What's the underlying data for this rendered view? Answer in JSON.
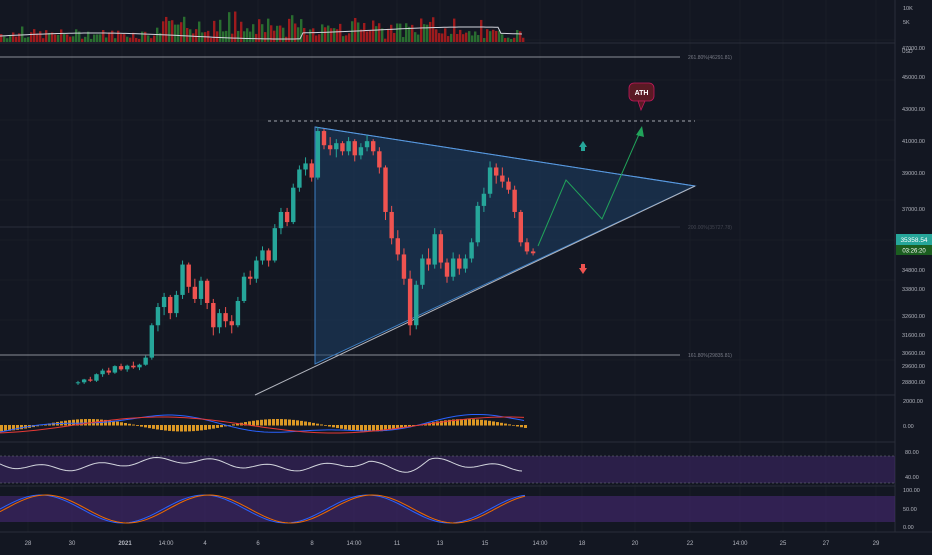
{
  "colors": {
    "background": "#131722",
    "grid": "#1e222d",
    "up": "#26a69a",
    "down": "#ef5350",
    "triangle_fill": "#1e3f66",
    "triangle_stroke": "#3d7fc4",
    "projection": "#21a35a",
    "volume_up": "#2e7d32",
    "volume_down": "#b71c1c",
    "macd_line": "#2962ff",
    "signal_line": "#e53935",
    "macd_hist": "#f2a626",
    "rsi_line": "#d1d4dc",
    "rsi_band": "#4a2a7a",
    "stoch_k": "#2962ff",
    "stoch_d": "#ef6c00",
    "price_badge": "#26a69a",
    "ath_badge": "#5a1a24"
  },
  "volume_axis": [
    "10K",
    "5K"
  ],
  "price_axis": [
    "47000.00",
    "45000.00",
    "43000.00",
    "41000.00",
    "39000.00",
    "37000.00",
    "34800.00",
    "33800.00",
    "32600.00",
    "31600.00",
    "30600.00",
    "29600.00",
    "28800.00"
  ],
  "price_axis_unit": "USD",
  "current_price": "35358.54",
  "countdown": "03:26:20",
  "fib_labels": [
    "261.80%(46291.81)",
    "161.80%(29835.81)",
    "200.00%(35727.78)"
  ],
  "ath_label": "ATH",
  "macd_axis": [
    "2000.00",
    "0.00"
  ],
  "rsi_axis": [
    "80.00",
    "40.00"
  ],
  "stoch_axis": [
    "100.00",
    "50.00",
    "0.00"
  ],
  "time_axis": [
    "28",
    "30",
    "2021",
    "14:00",
    "4",
    "6",
    "8",
    "14:00",
    "11",
    "13",
    "15",
    "14:00",
    "18",
    "20",
    "22",
    "14:00",
    "25",
    "27",
    "29"
  ],
  "chart_data": {
    "type": "candlestick",
    "ylim": [
      28000,
      48000
    ],
    "candles": [
      [
        28950,
        29050,
        28850,
        28980
      ],
      [
        28980,
        29150,
        28900,
        29120
      ],
      [
        29120,
        29250,
        29000,
        29060
      ],
      [
        29060,
        29420,
        29000,
        29380
      ],
      [
        29380,
        29650,
        29250,
        29560
      ],
      [
        29560,
        29700,
        29350,
        29460
      ],
      [
        29460,
        29820,
        29400,
        29780
      ],
      [
        29780,
        29900,
        29550,
        29620
      ],
      [
        29620,
        29850,
        29500,
        29800
      ],
      [
        29800,
        30000,
        29650,
        29720
      ],
      [
        29720,
        29900,
        29580,
        29850
      ],
      [
        29850,
        30300,
        29800,
        30200
      ],
      [
        30200,
        31900,
        30100,
        31800
      ],
      [
        31800,
        32900,
        31500,
        32700
      ],
      [
        32700,
        33400,
        32300,
        33200
      ],
      [
        33200,
        33300,
        32100,
        32400
      ],
      [
        32400,
        33500,
        32200,
        33300
      ],
      [
        33300,
        35000,
        33100,
        34800
      ],
      [
        34800,
        34900,
        33400,
        33700
      ],
      [
        33700,
        34100,
        32900,
        33100
      ],
      [
        33100,
        34200,
        32800,
        34000
      ],
      [
        34000,
        34100,
        32600,
        32900
      ],
      [
        32900,
        33100,
        31300,
        31700
      ],
      [
        31700,
        32600,
        31400,
        32400
      ],
      [
        32400,
        32700,
        31700,
        32000
      ],
      [
        32000,
        32300,
        31400,
        31800
      ],
      [
        31800,
        33200,
        31700,
        33000
      ],
      [
        33000,
        34400,
        32900,
        34200
      ],
      [
        34200,
        34500,
        33800,
        34100
      ],
      [
        34100,
        35200,
        33900,
        35000
      ],
      [
        35000,
        35700,
        34800,
        35500
      ],
      [
        35500,
        35600,
        34700,
        35000
      ],
      [
        35000,
        36800,
        34900,
        36600
      ],
      [
        36600,
        37600,
        36300,
        37400
      ],
      [
        37400,
        37600,
        36700,
        36900
      ],
      [
        36900,
        38800,
        36800,
        38600
      ],
      [
        38600,
        39700,
        38400,
        39500
      ],
      [
        39500,
        40100,
        39200,
        39800
      ],
      [
        39800,
        40000,
        38900,
        39100
      ],
      [
        39100,
        41600,
        39000,
        41400
      ],
      [
        41400,
        41500,
        40500,
        40700
      ],
      [
        40700,
        41100,
        40200,
        40500
      ],
      [
        40500,
        41000,
        40100,
        40800
      ],
      [
        40800,
        40900,
        40200,
        40400
      ],
      [
        40400,
        41100,
        40200,
        40900
      ],
      [
        40900,
        41000,
        39900,
        40200
      ],
      [
        40200,
        40800,
        40000,
        40600
      ],
      [
        40600,
        41200,
        40400,
        40900
      ],
      [
        40900,
        41000,
        40200,
        40400
      ],
      [
        40400,
        40600,
        39300,
        39600
      ],
      [
        39600,
        39700,
        37000,
        37400
      ],
      [
        37400,
        37700,
        35800,
        36100
      ],
      [
        36100,
        36500,
        35000,
        35300
      ],
      [
        35300,
        35600,
        33800,
        34100
      ],
      [
        34100,
        34500,
        31300,
        31800
      ],
      [
        31800,
        34000,
        31600,
        33800
      ],
      [
        33800,
        35300,
        33600,
        35100
      ],
      [
        35100,
        35600,
        34500,
        34800
      ],
      [
        34800,
        36600,
        34600,
        36300
      ],
      [
        36300,
        36500,
        34600,
        34900
      ],
      [
        34900,
        35100,
        33900,
        34200
      ],
      [
        34200,
        35400,
        34000,
        35100
      ],
      [
        35100,
        35300,
        34300,
        34600
      ],
      [
        34600,
        35300,
        34400,
        35100
      ],
      [
        35100,
        36100,
        34900,
        35900
      ],
      [
        35900,
        37900,
        35700,
        37700
      ],
      [
        37700,
        38600,
        37400,
        38300
      ],
      [
        38300,
        39900,
        38100,
        39600
      ],
      [
        39600,
        39800,
        38800,
        39200
      ],
      [
        39200,
        39600,
        38600,
        38900
      ],
      [
        38900,
        39100,
        38300,
        38500
      ],
      [
        38500,
        38700,
        37100,
        37400
      ],
      [
        37400,
        37500,
        35700,
        35900
      ],
      [
        35900,
        36100,
        35300,
        35450
      ],
      [
        35450,
        35600,
        35250,
        35358
      ]
    ],
    "triangle_points_price": [
      41600,
      39050,
      29600
    ],
    "ath_target": 42150,
    "fib_levels": [
      46291.81,
      29835.81,
      35727.78
    ]
  }
}
